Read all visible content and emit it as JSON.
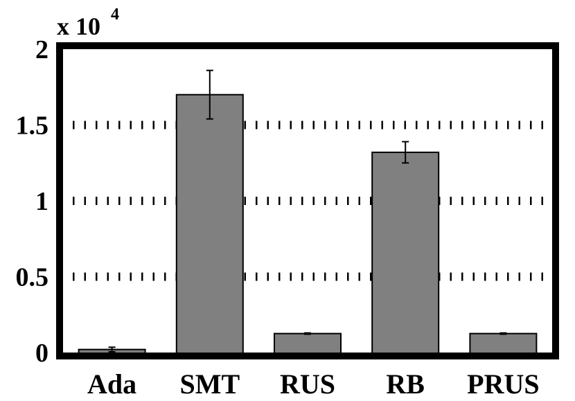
{
  "chart_data": {
    "type": "bar",
    "categories": [
      "Ada",
      "SMT",
      "RUS",
      "RB",
      "PRUS"
    ],
    "values": [
      200,
      17000,
      1250,
      13200,
      1250
    ],
    "errors": [
      150,
      1600,
      40,
      700,
      40
    ],
    "ylim": [
      0,
      20000
    ],
    "yticks": [
      0,
      5000,
      10000,
      15000,
      20000
    ],
    "ytick_labels": [
      "0",
      "0.5",
      "1",
      "1.5",
      "2"
    ],
    "multiplier_label": "x 10",
    "multiplier_exponent": "4",
    "grid": "horizontal-dotted",
    "bar_color": "#808080"
  }
}
